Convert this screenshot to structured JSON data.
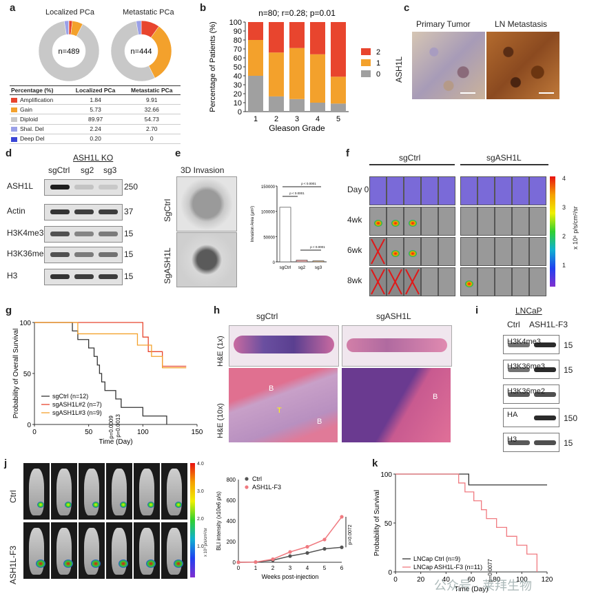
{
  "panels": {
    "a": "a",
    "b": "b",
    "c": "c",
    "d": "d",
    "e": "e",
    "f": "f",
    "g": "g",
    "h": "h",
    "i": "i",
    "j": "j",
    "k": "k"
  },
  "panel_a": {
    "donut_titles": [
      "Localized PCa",
      "Metastatic PCa"
    ],
    "donut_centers": [
      "n=489",
      "n=444"
    ],
    "table": {
      "headers": [
        "Percentage (%)",
        "Localized PCa",
        "Metastatic PCa"
      ],
      "rows": [
        {
          "label": "Amplification",
          "color": "#e8452e",
          "localized": "1.84",
          "metastatic": "9.91"
        },
        {
          "label": "Gain",
          "color": "#f3a12c",
          "localized": "5.73",
          "metastatic": "32.66"
        },
        {
          "label": "Diploid",
          "color": "#c8c8c8",
          "localized": "89.97",
          "metastatic": "54.73"
        },
        {
          "label": "Shal. Del",
          "color": "#9aa0e8",
          "localized": "2.24",
          "metastatic": "2.70"
        },
        {
          "label": "Deep Del",
          "color": "#3a46d6",
          "localized": "0.20",
          "metastatic": "0"
        }
      ]
    }
  },
  "chart_data": [
    {
      "type": "bar",
      "stacked": true,
      "title": "n=80; r=0.28; p=0.01",
      "xlabel": "Gleason Grade",
      "ylabel": "Percentage of Patients (%)",
      "categories": [
        "1",
        "2",
        "3",
        "4",
        "5"
      ],
      "ylim": [
        0,
        100
      ],
      "yticks": [
        "0",
        "10",
        "20",
        "30",
        "40",
        "50",
        "60",
        "70",
        "80",
        "90",
        "100"
      ],
      "series": [
        {
          "name": "0",
          "color": "#a0a0a0",
          "values": [
            40,
            17,
            14,
            10,
            9
          ]
        },
        {
          "name": "1",
          "color": "#f3a12c",
          "values": [
            40,
            49,
            57,
            54,
            30
          ]
        },
        {
          "name": "2",
          "color": "#e8452e",
          "values": [
            20,
            34,
            29,
            36,
            61
          ]
        }
      ],
      "legend": "right"
    },
    {
      "type": "bar",
      "title": "",
      "ylabel": "Invasion Area (µm²)",
      "categories": [
        "sgCtrl",
        "sg2",
        "sg3"
      ],
      "values": [
        108000,
        3500,
        2000
      ],
      "ylim": [
        0,
        150000
      ],
      "yticks": [
        "0",
        "50000",
        "100000",
        "150000"
      ],
      "annotations": [
        "p < 0.0001",
        "p < 0.0001",
        "p < 0.0001"
      ]
    },
    {
      "type": "line",
      "title": "",
      "xlabel": "Time (Day)",
      "ylabel": "Probability of Overall Survival",
      "xticks": [
        "0",
        "50",
        "100",
        "150"
      ],
      "yticks": [
        "0",
        "50",
        "100"
      ],
      "series": [
        {
          "name": "sgCtrl (n=12)",
          "color": "#333333",
          "x": [
            0,
            35,
            40,
            50,
            55,
            58,
            60,
            62,
            65,
            75,
            80,
            100,
            115,
            122
          ],
          "y": [
            100,
            91.7,
            83.3,
            75,
            66.7,
            58.3,
            50,
            41.7,
            33.3,
            25,
            16.7,
            8.3,
            8.3,
            0
          ]
        },
        {
          "name": "sgASH1L#2 (n=7)",
          "color": "#e8452e",
          "x": [
            0,
            65,
            100,
            105,
            118,
            140
          ],
          "y": [
            100,
            100,
            85.7,
            71.4,
            57.1,
            57.1
          ]
        },
        {
          "name": "sgASH1L#3 (n=9)",
          "color": "#f3a12c",
          "x": [
            0,
            40,
            95,
            108,
            118,
            140
          ],
          "y": [
            100,
            88.9,
            77.8,
            66.7,
            55.6,
            55.6
          ]
        }
      ],
      "annotations": [
        "p=0.0009",
        "p=0.0013"
      ]
    },
    {
      "type": "line",
      "title": "",
      "xlabel": "Weeks post-injection",
      "ylabel": "BLI intensity (x10e6 p/s)",
      "x": [
        0,
        1,
        2,
        3,
        4,
        5,
        6
      ],
      "ylim": [
        0,
        800
      ],
      "yticks": [
        "0",
        "200",
        "400",
        "600",
        "800"
      ],
      "series": [
        {
          "name": "Ctrl",
          "color": "#555555",
          "values": [
            0,
            2,
            20,
            60,
            90,
            130,
            145
          ]
        },
        {
          "name": "ASH1L-F3",
          "color": "#f07a80",
          "values": [
            0,
            2,
            30,
            100,
            150,
            220,
            440
          ]
        }
      ],
      "annotations": [
        "p=0.0072"
      ]
    },
    {
      "type": "line",
      "title": "",
      "xlabel": "Time (Day)",
      "ylabel": "Probability of Survival",
      "xticks": [
        "0",
        "20",
        "40",
        "60",
        "80",
        "100",
        "120"
      ],
      "yticks": [
        "0",
        "50",
        "100"
      ],
      "series": [
        {
          "name": "LNCap Ctrl (n=9)",
          "color": "#333333",
          "x": [
            0,
            56,
            58,
            120
          ],
          "y": [
            100,
            100,
            88.9,
            88.9
          ]
        },
        {
          "name": "LNCap ASH1L-F3 (n=11)",
          "color": "#f07a80",
          "x": [
            0,
            50,
            55,
            62,
            68,
            72,
            80,
            88,
            96,
            104,
            112
          ],
          "y": [
            100,
            90.9,
            81.8,
            72.7,
            63.6,
            54.5,
            45.5,
            36.4,
            27.3,
            18.2,
            0
          ]
        }
      ],
      "annotations": [
        "p=0.0077"
      ]
    }
  ],
  "panel_c": {
    "row_label": "ASH1L",
    "col_labels": [
      "Primary Tumor",
      "LN Metastasis"
    ]
  },
  "panel_d": {
    "title": "ASH1L KO",
    "lanes": [
      "sgCtrl",
      "sg2",
      "sg3"
    ],
    "blots": [
      {
        "label": "ASH1L",
        "mw": "250"
      },
      {
        "label": "Actin",
        "mw": "37"
      },
      {
        "label": "H3K4me3",
        "mw": "15"
      },
      {
        "label": "H3K36me3",
        "mw": "15"
      },
      {
        "label": "H3",
        "mw": "15"
      }
    ]
  },
  "panel_e": {
    "title": "3D Invasion",
    "row_labels": [
      "SgCtrl",
      "SgASH1L"
    ]
  },
  "panel_f": {
    "groups": [
      "sgCtrl",
      "sgASH1L"
    ],
    "timepoints": [
      "Day 0",
      "4wk",
      "6wk",
      "8wk"
    ],
    "colorbar_label": "x 10⁶ p/s/cm²/sr",
    "colorbar_ticks": [
      "4",
      "3",
      "2",
      "1"
    ]
  },
  "panel_h": {
    "groups": [
      "sgCtrl",
      "sgASH1L"
    ],
    "row_labels": [
      "H&E (1x)",
      "H&E (10x)"
    ],
    "region_labels": [
      "B",
      "T",
      "B",
      "B"
    ]
  },
  "panel_i": {
    "title": "LNCaP",
    "lanes": [
      "Ctrl",
      "ASH1L-F3"
    ],
    "blots": [
      {
        "label": "H3K4me3",
        "mw": "15"
      },
      {
        "label": "H3K36me3",
        "mw": "15"
      },
      {
        "label": "H3K36me2",
        "mw": ""
      },
      {
        "label": "HA",
        "mw": "150"
      },
      {
        "label": "H3",
        "mw": "15"
      }
    ]
  },
  "panel_j": {
    "row_labels": [
      "Ctrl",
      "ASH1L-F3"
    ],
    "colorbar_ticks": [
      "4.0",
      "3.0",
      "2.0",
      "1.0"
    ],
    "colorbar_label": "x 10⁶ p/s/cm²/sr"
  },
  "watermark": "公众号 · 莱拜生物"
}
